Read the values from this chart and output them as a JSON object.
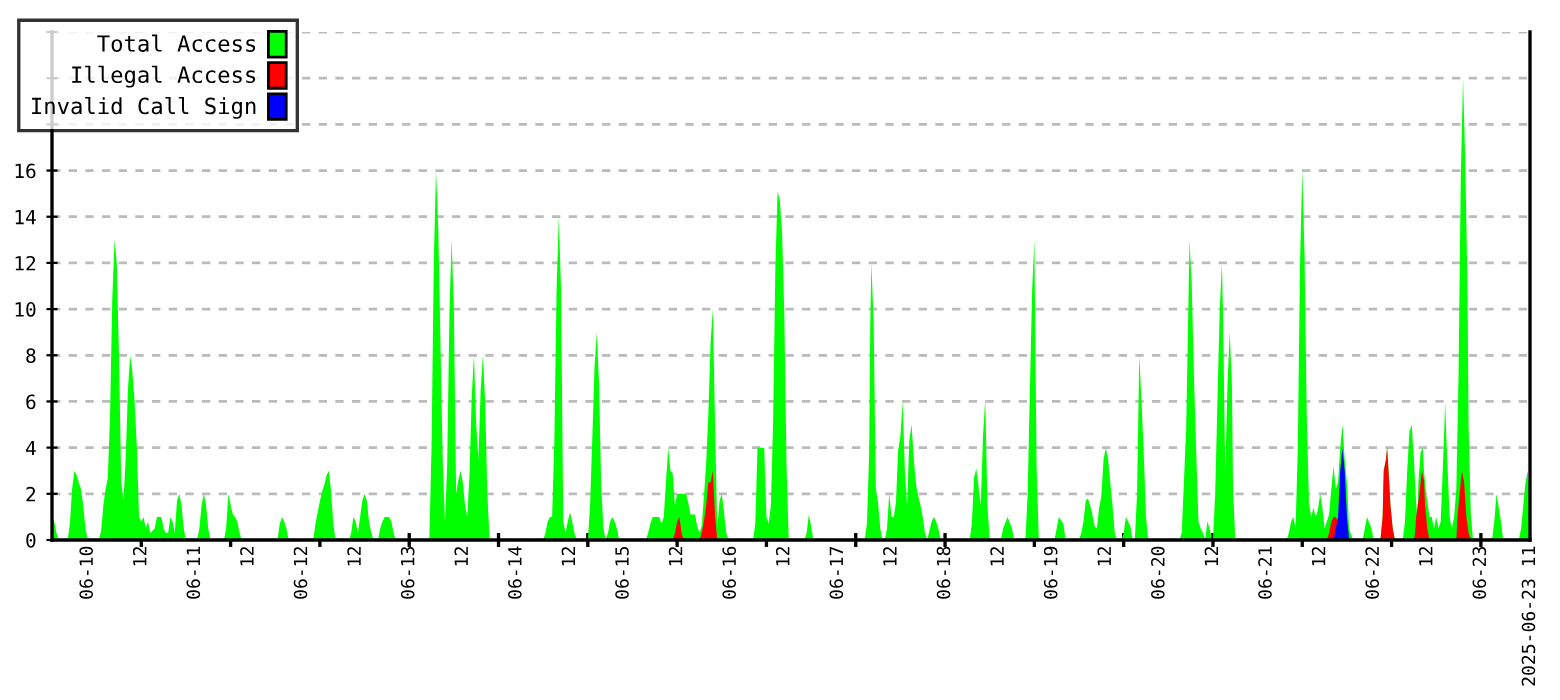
{
  "chart_data": {
    "type": "area",
    "legend": "top left",
    "grid": "y",
    "xlim": [
      "2025-06-09T16:00",
      "2025-06-23T11:00"
    ],
    "ylim": [
      0,
      22
    ],
    "yticks": [
      0,
      2,
      4,
      6,
      8,
      10,
      12,
      14,
      16,
      {
        "value": 18,
        "label": null
      },
      {
        "value": 20,
        "label": null
      },
      {
        "value": 22,
        "label": null
      }
    ],
    "xticks": [
      {
        "value": "2025-06-10T00:00",
        "label": "06-10"
      },
      {
        "value": "2025-06-10T12:00",
        "label": "12"
      },
      {
        "value": "2025-06-11T00:00",
        "label": "06-11"
      },
      {
        "value": "2025-06-11T12:00",
        "label": "12"
      },
      {
        "value": "2025-06-12T00:00",
        "label": "06-12"
      },
      {
        "value": "2025-06-12T12:00",
        "label": "12"
      },
      {
        "value": "2025-06-13T00:00",
        "label": "06-13"
      },
      {
        "value": "2025-06-13T12:00",
        "label": "12"
      },
      {
        "value": "2025-06-14T00:00",
        "label": "06-14"
      },
      {
        "value": "2025-06-14T12:00",
        "label": "12"
      },
      {
        "value": "2025-06-15T00:00",
        "label": "06-15"
      },
      {
        "value": "2025-06-15T12:00",
        "label": "12"
      },
      {
        "value": "2025-06-16T00:00",
        "label": "06-16"
      },
      {
        "value": "2025-06-16T12:00",
        "label": "12"
      },
      {
        "value": "2025-06-17T00:00",
        "label": "06-17"
      },
      {
        "value": "2025-06-17T12:00",
        "label": "12"
      },
      {
        "value": "2025-06-18T00:00",
        "label": "06-18"
      },
      {
        "value": "2025-06-18T12:00",
        "label": "12"
      },
      {
        "value": "2025-06-19T00:00",
        "label": "06-19"
      },
      {
        "value": "2025-06-19T12:00",
        "label": "12"
      },
      {
        "value": "2025-06-20T00:00",
        "label": "06-20"
      },
      {
        "value": "2025-06-20T12:00",
        "label": "12"
      },
      {
        "value": "2025-06-21T00:00",
        "label": "06-21"
      },
      {
        "value": "2025-06-21T12:00",
        "label": "12"
      },
      {
        "value": "2025-06-22T00:00",
        "label": "06-22"
      },
      {
        "value": "2025-06-22T12:00",
        "label": "12"
      },
      {
        "value": "2025-06-23T00:00",
        "label": "06-23"
      },
      {
        "value": "2025-06-23T11:00",
        "label": "2025-06-23 11"
      },
      {
        "value": "2025-06-10T12:00",
        "label": null
      },
      {
        "value": "2025-06-11T08:00",
        "label": null
      },
      {
        "value": "2025-06-12T04:00",
        "label": null
      },
      {
        "value": "2025-06-13T00:00",
        "label": null
      },
      {
        "value": "2025-06-13T20:00",
        "label": null
      },
      {
        "value": "2025-06-14T16:00",
        "label": null
      },
      {
        "value": "2025-06-15T12:00",
        "label": null
      },
      {
        "value": "2025-06-16T08:00",
        "label": null
      },
      {
        "value": "2025-06-17T04:00",
        "label": null
      },
      {
        "value": "2025-06-18T00:00",
        "label": null
      },
      {
        "value": "2025-06-18T20:00",
        "label": null
      },
      {
        "value": "2025-06-19T16:00",
        "label": null
      },
      {
        "value": "2025-06-20T12:00",
        "label": null
      },
      {
        "value": "2025-06-21T08:00",
        "label": null
      },
      {
        "value": "2025-06-22T04:00",
        "label": null
      },
      {
        "value": "2025-06-23T00:00",
        "label": null
      }
    ],
    "series": [
      {
        "name": "Total Access",
        "color": "#00ff00",
        "x": [
          "2025-06-09T16:00",
          "2025-06-09T16:30",
          "2025-06-09T17:00",
          "2025-06-09T17:30",
          "2025-06-09T19:30",
          "2025-06-09T20:00",
          "2025-06-09T20:30",
          "2025-06-09T21:00",
          "2025-06-09T21:30",
          "2025-06-09T22:00",
          "2025-06-09T22:30",
          "2025-06-09T23:00",
          "2025-06-09T23:30",
          "2025-06-10T00:00",
          "2025-06-10T02:30",
          "2025-06-10T03:00",
          "2025-06-10T03:30",
          "2025-06-10T04:00",
          "2025-06-10T04:30",
          "2025-06-10T05:00",
          "2025-06-10T05:30",
          "2025-06-10T06:00",
          "2025-06-10T06:30",
          "2025-06-10T07:00",
          "2025-06-10T07:30",
          "2025-06-10T08:00",
          "2025-06-10T08:30",
          "2025-06-10T09:00",
          "2025-06-10T09:30",
          "2025-06-10T10:00",
          "2025-06-10T10:30",
          "2025-06-10T11:00",
          "2025-06-10T11:30",
          "2025-06-10T12:00",
          "2025-06-10T12:30",
          "2025-06-10T13:00",
          "2025-06-10T13:30",
          "2025-06-10T14:00",
          "2025-06-10T15:00",
          "2025-06-10T15:30",
          "2025-06-10T16:00",
          "2025-06-10T16:30",
          "2025-06-10T17:00",
          "2025-06-10T17:30",
          "2025-06-10T18:00",
          "2025-06-10T18:30",
          "2025-06-10T19:00",
          "2025-06-10T19:30",
          "2025-06-10T20:00",
          "2025-06-10T20:30",
          "2025-06-10T21:00",
          "2025-06-10T21:30",
          "2025-06-10T22:00",
          "2025-06-11T00:30",
          "2025-06-11T01:00",
          "2025-06-11T01:30",
          "2025-06-11T02:00",
          "2025-06-11T02:30",
          "2025-06-11T03:00",
          "2025-06-11T03:30",
          "2025-06-11T06:30",
          "2025-06-11T07:00",
          "2025-06-11T07:30",
          "2025-06-11T08:00",
          "2025-06-11T08:30",
          "2025-06-11T09:00",
          "2025-06-11T09:30",
          "2025-06-11T10:00",
          "2025-06-11T10:30",
          "2025-06-11T18:30",
          "2025-06-11T19:00",
          "2025-06-11T19:30",
          "2025-06-11T20:00",
          "2025-06-11T20:30",
          "2025-06-11T21:00",
          "2025-06-12T02:30",
          "2025-06-12T03:00",
          "2025-06-12T03:30",
          "2025-06-12T04:00",
          "2025-06-12T04:30",
          "2025-06-12T05:00",
          "2025-06-12T05:30",
          "2025-06-12T06:00",
          "2025-06-12T06:30",
          "2025-06-12T07:00",
          "2025-06-12T07:30",
          "2025-06-12T10:30",
          "2025-06-12T11:00",
          "2025-06-12T11:30",
          "2025-06-12T12:00",
          "2025-06-12T12:30",
          "2025-06-12T13:00",
          "2025-06-12T13:30",
          "2025-06-12T14:00",
          "2025-06-12T14:30",
          "2025-06-12T15:00",
          "2025-06-12T15:30",
          "2025-06-12T16:00",
          "2025-06-12T17:00",
          "2025-06-12T17:30",
          "2025-06-12T18:00",
          "2025-06-12T18:30",
          "2025-06-12T19:00",
          "2025-06-12T19:30",
          "2025-06-12T20:00",
          "2025-06-12T20:30",
          "2025-06-12T21:00",
          "2025-06-13T04:30",
          "2025-06-13T05:00",
          "2025-06-13T05:30",
          "2025-06-13T06:00",
          "2025-06-13T06:30",
          "2025-06-13T07:00",
          "2025-06-13T07:30",
          "2025-06-13T08:00",
          "2025-06-13T08:30",
          "2025-06-13T09:00",
          "2025-06-13T09:30",
          "2025-06-13T10:00",
          "2025-06-13T10:30",
          "2025-06-13T11:00",
          "2025-06-13T11:30",
          "2025-06-13T12:00",
          "2025-06-13T12:30",
          "2025-06-13T13:00",
          "2025-06-13T13:30",
          "2025-06-13T14:00",
          "2025-06-13T14:30",
          "2025-06-13T15:00",
          "2025-06-13T15:30",
          "2025-06-13T16:00",
          "2025-06-13T16:30",
          "2025-06-13T17:00",
          "2025-06-13T17:30",
          "2025-06-13T18:00",
          "2025-06-14T06:00",
          "2025-06-14T06:30",
          "2025-06-14T07:00",
          "2025-06-14T07:30",
          "2025-06-14T08:00",
          "2025-06-14T08:30",
          "2025-06-14T09:00",
          "2025-06-14T09:30",
          "2025-06-14T10:00",
          "2025-06-14T10:30",
          "2025-06-14T11:00",
          "2025-06-14T11:30",
          "2025-06-14T12:00",
          "2025-06-14T12:30",
          "2025-06-14T13:00",
          "2025-06-14T13:30",
          "2025-06-14T16:00",
          "2025-06-14T16:30",
          "2025-06-14T17:00",
          "2025-06-14T17:30",
          "2025-06-14T18:00",
          "2025-06-14T18:30",
          "2025-06-14T19:00",
          "2025-06-14T19:30",
          "2025-06-14T20:00",
          "2025-06-14T20:30",
          "2025-06-14T21:00",
          "2025-06-14T21:30",
          "2025-06-14T22:00",
          "2025-06-14T22:30",
          "2025-06-14T23:00",
          "2025-06-15T05:00",
          "2025-06-15T05:30",
          "2025-06-15T06:00",
          "2025-06-15T06:30",
          "2025-06-15T07:00",
          "2025-06-15T07:30",
          "2025-06-15T08:00",
          "2025-06-15T08:30",
          "2025-06-15T09:00",
          "2025-06-15T09:30",
          "2025-06-15T10:00",
          "2025-06-15T10:30",
          "2025-06-15T11:00",
          "2025-06-15T11:30",
          "2025-06-15T12:00",
          "2025-06-15T12:30",
          "2025-06-15T13:00",
          "2025-06-15T13:30",
          "2025-06-15T14:00",
          "2025-06-15T14:30",
          "2025-06-15T15:00",
          "2025-06-15T15:30",
          "2025-06-15T16:00",
          "2025-06-15T16:30",
          "2025-06-15T17:00",
          "2025-06-15T17:30",
          "2025-06-15T18:00",
          "2025-06-15T18:30",
          "2025-06-15T19:00",
          "2025-06-15T19:30",
          "2025-06-15T20:00",
          "2025-06-15T20:30",
          "2025-06-15T21:00",
          "2025-06-15T21:30",
          "2025-06-15T22:00",
          "2025-06-15T22:30",
          "2025-06-15T23:00",
          "2025-06-15T23:30",
          "2025-06-16T05:00",
          "2025-06-16T05:30",
          "2025-06-16T06:00",
          "2025-06-16T06:30",
          "2025-06-16T07:00",
          "2025-06-16T07:30",
          "2025-06-16T08:00",
          "2025-06-16T08:30",
          "2025-06-16T09:00",
          "2025-06-16T09:30",
          "2025-06-16T10:00",
          "2025-06-16T10:30",
          "2025-06-16T11:00",
          "2025-06-16T11:30",
          "2025-06-16T12:00",
          "2025-06-16T12:30",
          "2025-06-16T13:00",
          "2025-06-16T16:30",
          "2025-06-16T17:00",
          "2025-06-16T17:30",
          "2025-06-16T18:00",
          "2025-06-16T18:30",
          "2025-06-17T06:00",
          "2025-06-17T06:30",
          "2025-06-17T07:00",
          "2025-06-17T07:15",
          "2025-06-17T07:30",
          "2025-06-17T08:00",
          "2025-06-17T08:30",
          "2025-06-17T09:00",
          "2025-06-17T09:30",
          "2025-06-17T10:00",
          "2025-06-17T10:30",
          "2025-06-17T11:00",
          "2025-06-17T11:30",
          "2025-06-17T12:00",
          "2025-06-17T12:30",
          "2025-06-17T13:00",
          "2025-06-17T13:30",
          "2025-06-17T14:00",
          "2025-06-17T14:30",
          "2025-06-17T15:00",
          "2025-06-17T15:30",
          "2025-06-17T16:00",
          "2025-06-17T16:30",
          "2025-06-17T17:00",
          "2025-06-17T17:30",
          "2025-06-17T18:00",
          "2025-06-17T18:30",
          "2025-06-17T19:00",
          "2025-06-17T19:30",
          "2025-06-17T20:00",
          "2025-06-17T20:30",
          "2025-06-17T21:00",
          "2025-06-17T21:30",
          "2025-06-17T22:00",
          "2025-06-17T22:30",
          "2025-06-17T23:00",
          "2025-06-18T05:30",
          "2025-06-18T06:00",
          "2025-06-18T06:30",
          "2025-06-18T07:00",
          "2025-06-18T07:30",
          "2025-06-18T08:00",
          "2025-06-18T08:30",
          "2025-06-18T09:00",
          "2025-06-18T09:30",
          "2025-06-18T10:00",
          "2025-06-18T12:30",
          "2025-06-18T13:00",
          "2025-06-18T14:00",
          "2025-06-18T15:00",
          "2025-06-18T15:30",
          "2025-06-18T18:00",
          "2025-06-18T18:30",
          "2025-06-18T19:00",
          "2025-06-18T19:30",
          "2025-06-18T20:00",
          "2025-06-18T20:30",
          "2025-06-18T21:00",
          "2025-06-19T00:30",
          "2025-06-19T01:00",
          "2025-06-19T01:30",
          "2025-06-19T02:30",
          "2025-06-19T03:00",
          "2025-06-19T06:00",
          "2025-06-19T06:30",
          "2025-06-19T07:00",
          "2025-06-19T07:30",
          "2025-06-19T08:00",
          "2025-06-19T08:30",
          "2025-06-19T09:00",
          "2025-06-19T09:30",
          "2025-06-19T10:00",
          "2025-06-19T10:30",
          "2025-06-19T11:00",
          "2025-06-19T11:30",
          "2025-06-19T12:00",
          "2025-06-19T12:30",
          "2025-06-19T13:00",
          "2025-06-19T13:30",
          "2025-06-19T14:00",
          "2025-06-19T14:30",
          "2025-06-19T15:30",
          "2025-06-19T16:00",
          "2025-06-19T16:30",
          "2025-06-19T17:30",
          "2025-06-19T18:00",
          "2025-06-19T18:30",
          "2025-06-19T19:00",
          "2025-06-19T19:30",
          "2025-06-19T20:00",
          "2025-06-19T20:30",
          "2025-06-19T21:00",
          "2025-06-19T21:30",
          "2025-06-20T04:30",
          "2025-06-20T05:00",
          "2025-06-20T06:00",
          "2025-06-20T06:30",
          "2025-06-20T06:45",
          "2025-06-20T07:15",
          "2025-06-20T07:45",
          "2025-06-20T08:15",
          "2025-06-20T08:45",
          "2025-06-20T09:15",
          "2025-06-20T09:45",
          "2025-06-20T10:15",
          "2025-06-20T10:45",
          "2025-06-20T11:15",
          "2025-06-20T11:45",
          "2025-06-20T12:00",
          "2025-06-20T12:30",
          "2025-06-20T13:00",
          "2025-06-20T13:30",
          "2025-06-20T14:00",
          "2025-06-20T14:15",
          "2025-06-20T14:45",
          "2025-06-20T15:15",
          "2025-06-20T15:45",
          "2025-06-20T16:15",
          "2025-06-20T16:30",
          "2025-06-20T17:00",
          "2025-06-21T04:30",
          "2025-06-21T05:00",
          "2025-06-21T05:30",
          "2025-06-21T06:00",
          "2025-06-21T06:30",
          "2025-06-21T07:00",
          "2025-06-21T07:30",
          "2025-06-21T08:00",
          "2025-06-21T08:30",
          "2025-06-21T09:00",
          "2025-06-21T09:30",
          "2025-06-21T10:00",
          "2025-06-21T10:30",
          "2025-06-21T11:00",
          "2025-06-21T11:30",
          "2025-06-21T12:00",
          "2025-06-21T12:30",
          "2025-06-21T13:00",
          "2025-06-21T14:00",
          "2025-06-21T14:30",
          "2025-06-21T15:00",
          "2025-06-21T15:30",
          "2025-06-21T16:00",
          "2025-06-21T16:30",
          "2025-06-21T17:00",
          "2025-06-21T17:30",
          "2025-06-21T18:00",
          "2025-06-21T18:30",
          "2025-06-21T19:00",
          "2025-06-21T19:30",
          "2025-06-21T21:30",
          "2025-06-21T22:00",
          "2025-06-21T22:30",
          "2025-06-21T23:30",
          "2025-06-22T00:00",
          "2025-06-22T01:30",
          "2025-06-22T02:00",
          "2025-06-22T02:15",
          "2025-06-22T02:45",
          "2025-06-22T03:00",
          "2025-06-22T03:15",
          "2025-06-22T03:45",
          "2025-06-22T04:15",
          "2025-06-22T04:45",
          "2025-06-22T06:30",
          "2025-06-22T07:00",
          "2025-06-22T07:30",
          "2025-06-22T08:00",
          "2025-06-22T08:30",
          "2025-06-22T09:00",
          "2025-06-22T09:30",
          "2025-06-22T09:45",
          "2025-06-22T10:00",
          "2025-06-22T10:30",
          "2025-06-22T11:00",
          "2025-06-22T11:15",
          "2025-06-22T11:45",
          "2025-06-22T12:30",
          "2025-06-22T13:00",
          "2025-06-22T13:30",
          "2025-06-22T14:00",
          "2025-06-22T14:30",
          "2025-06-22T15:00",
          "2025-06-22T15:15",
          "2025-06-22T15:45",
          "2025-06-22T16:00",
          "2025-06-22T16:15",
          "2025-06-22T17:00",
          "2025-06-22T17:30",
          "2025-06-22T18:00",
          "2025-06-22T18:30",
          "2025-06-22T19:00",
          "2025-06-22T19:30",
          "2025-06-22T20:00",
          "2025-06-22T20:30",
          "2025-06-22T21:00",
          "2025-06-22T21:15",
          "2025-06-22T21:45",
          "2025-06-22T22:15",
          "2025-06-23T02:30",
          "2025-06-23T03:00",
          "2025-06-23T03:30",
          "2025-06-23T04:30",
          "2025-06-23T05:00",
          "2025-06-23T08:30",
          "2025-06-23T09:00",
          "2025-06-23T09:30",
          "2025-06-23T10:00",
          "2025-06-23T10:30",
          "2025-06-23T11:00"
        ],
        "values": [
          1,
          0.8,
          0.3,
          0,
          0,
          0.7,
          2.2,
          3,
          2.8,
          2.5,
          2.2,
          1.5,
          0.5,
          0,
          0,
          0.4,
          1.5,
          2.2,
          2.7,
          5.4,
          10.4,
          13,
          12,
          8,
          2.5,
          1.7,
          3.5,
          6.5,
          8,
          7.3,
          6,
          4,
          1,
          0.8,
          1,
          0.5,
          0.8,
          0.3,
          0.5,
          1,
          1,
          1,
          0.5,
          0.3,
          0.3,
          1,
          0.8,
          0.3,
          1.7,
          2,
          1.5,
          0.5,
          0,
          0,
          0.5,
          1.5,
          2,
          1.5,
          0.5,
          0,
          0,
          0.5,
          2,
          1.5,
          1.1,
          1,
          0.8,
          0.3,
          0,
          0,
          0.7,
          1,
          0.8,
          0.5,
          0,
          0,
          0.7,
          1.2,
          1.7,
          2.1,
          2.4,
          2.8,
          3,
          2.1,
          0.7,
          0,
          0,
          0.3,
          1,
          0.8,
          0.3,
          1,
          1.7,
          2,
          1.7,
          0.8,
          0.3,
          0,
          0,
          0.5,
          0.8,
          1,
          1,
          1,
          0.8,
          0.3,
          0,
          0,
          4,
          12,
          16,
          13.5,
          8.5,
          3.5,
          0.8,
          3.2,
          9.8,
          13,
          10,
          2,
          2.6,
          3,
          2.5,
          1.5,
          1,
          2.8,
          6.2,
          8,
          5,
          3.5,
          6.5,
          8,
          6,
          2,
          0,
          0,
          0.3,
          0.8,
          1,
          1,
          4.3,
          10.8,
          14,
          10.8,
          0.8,
          0.3,
          0.8,
          1.2,
          0.8,
          0.3,
          0,
          0,
          1.5,
          4.4,
          7.5,
          9,
          6.8,
          2.3,
          0.5,
          0,
          0.3,
          0.8,
          1,
          0.8,
          0.5,
          0,
          0,
          0.3,
          0.7,
          1,
          1,
          1,
          1,
          0.7,
          1,
          2.5,
          4,
          3,
          2.9,
          1.5,
          2,
          2,
          2,
          2,
          2,
          1.6,
          1.1,
          1.1,
          1.1,
          0.6,
          0.3,
          0.6,
          1.9,
          3.3,
          5.5,
          8.6,
          10,
          4.8,
          0.5,
          1.7,
          2,
          1.2,
          0.3,
          0,
          0,
          0.7,
          4,
          4,
          4,
          4,
          1,
          0.7,
          1.5,
          5.2,
          11.8,
          15.1,
          14.7,
          13.3,
          9.8,
          3.2,
          0,
          0,
          0.3,
          1.1,
          0.6,
          0,
          0,
          0.7,
          3.7,
          9.3,
          12,
          9.5,
          2.2,
          1.6,
          0.5,
          0,
          0,
          0.5,
          2,
          1,
          1,
          1.6,
          3.9,
          4.5,
          6,
          3,
          1.5,
          4.3,
          5,
          3.5,
          2.4,
          1.9,
          1.5,
          1,
          0.3,
          0,
          0.4,
          0.8,
          1,
          0.8,
          0.5,
          0,
          0,
          0.7,
          2.7,
          3.1,
          2.3,
          1.5,
          4.5,
          6.1,
          1.5,
          0,
          0,
          0.5,
          1,
          0.5,
          0,
          0,
          2,
          6.5,
          10.8,
          13,
          3.2,
          0,
          0,
          0.5,
          1,
          0.7,
          0,
          0,
          0.3,
          0.8,
          1.7,
          1.8,
          1.5,
          1.1,
          0.6,
          0.5,
          1.4,
          1.9,
          3.5,
          4,
          3.5,
          2.5,
          1.5,
          0.3,
          0,
          0,
          0.3,
          1,
          0.6,
          0,
          0,
          2,
          8,
          6,
          3.7,
          1,
          0,
          0,
          0.3,
          4.8,
          10.2,
          13,
          11,
          7,
          3.8,
          0.8,
          0.5,
          0.3,
          0,
          0.8,
          0.5,
          0,
          0,
          2,
          6,
          9.9,
          12,
          9.7,
          2.9,
          6.7,
          9,
          6.7,
          2.2,
          0,
          0,
          0.3,
          0.8,
          1,
          0.5,
          4,
          12,
          16,
          12.4,
          5.4,
          1.6,
          1,
          1.4,
          1,
          1.3,
          2,
          1.4,
          0.5,
          1.1,
          2.2,
          3.2,
          2.2,
          2.5,
          4,
          5,
          3.5,
          2.5,
          0.5,
          0.2,
          0,
          0,
          0.5,
          1,
          0.5,
          0,
          0,
          1,
          3,
          3.5,
          4,
          3.2,
          1.5,
          0.5,
          0,
          0,
          0.8,
          3,
          4.7,
          5,
          3.5,
          1.6,
          1,
          2.5,
          3.8,
          4,
          3,
          2,
          1,
          1,
          0.5,
          1,
          0.5,
          0.8,
          2,
          4.5,
          6,
          4.5,
          1,
          0.5,
          1,
          2.2,
          7.2,
          15.7,
          20,
          16.4,
          11,
          4.9,
          1.1,
          0,
          0,
          0.8,
          2,
          0.8,
          0,
          0,
          0.5,
          1.5,
          2.5,
          3,
          1.5
        ]
      },
      {
        "name": "Illegal Access",
        "color": "#ff0000",
        "x": [
          "2025-06-15T11:00",
          "2025-06-15T11:30",
          "2025-06-15T12:00",
          "2025-06-15T12:30",
          "2025-06-15T13:00",
          "2025-06-15T13:30",
          "2025-06-15T17:00",
          "2025-06-15T17:30",
          "2025-06-15T18:00",
          "2025-06-15T18:30",
          "2025-06-15T19:00",
          "2025-06-15T19:30",
          "2025-06-15T20:00",
          "2025-06-15T20:30",
          "2025-06-15T21:00",
          "2025-06-21T13:30",
          "2025-06-21T14:00",
          "2025-06-21T14:30",
          "2025-06-21T15:00",
          "2025-06-21T15:30",
          "2025-06-21T16:00",
          "2025-06-21T16:30",
          "2025-06-21T17:00",
          "2025-06-21T17:30",
          "2025-06-21T18:00",
          "2025-06-21T18:30",
          "2025-06-22T01:30",
          "2025-06-22T02:00",
          "2025-06-22T02:15",
          "2025-06-22T02:45",
          "2025-06-22T03:00",
          "2025-06-22T03:15",
          "2025-06-22T03:45",
          "2025-06-22T04:15",
          "2025-06-22T04:45",
          "2025-06-22T09:00",
          "2025-06-22T09:15",
          "2025-06-22T09:30",
          "2025-06-22T10:15",
          "2025-06-22T10:45",
          "2025-06-22T11:15",
          "2025-06-22T11:30",
          "2025-06-22T12:00",
          "2025-06-22T12:30",
          "2025-06-22T18:30",
          "2025-06-22T18:45",
          "2025-06-22T19:15",
          "2025-06-22T19:45",
          "2025-06-22T20:15",
          "2025-06-22T20:45",
          "2025-06-22T21:15",
          "2025-06-22T21:45"
        ],
        "values": [
          0,
          0.3,
          0.8,
          1,
          0.3,
          0,
          0,
          0.3,
          0.8,
          1.5,
          2.5,
          2.5,
          3,
          1,
          0,
          0,
          0.3,
          0.8,
          1,
          1,
          0.8,
          1,
          null,
          0.8,
          0.3,
          0,
          0,
          1,
          3,
          3.5,
          4,
          3.2,
          1.5,
          0.5,
          0,
          0,
          0.3,
          1,
          2,
          3,
          2.6,
          1.5,
          0.5,
          0,
          0,
          1,
          2,
          3,
          2.5,
          1,
          0.3,
          0
        ]
      },
      {
        "name": "Invalid Call Sign",
        "color": "#0000ff",
        "x": [
          "2025-06-21T15:00",
          "2025-06-21T15:30",
          "2025-06-21T16:00",
          "2025-06-21T16:30",
          "2025-06-21T17:00",
          "2025-06-21T17:30",
          "2025-06-21T18:00",
          "2025-06-21T18:30"
        ],
        "values": [
          0,
          0.5,
          1,
          3,
          4,
          3,
          1,
          0
        ]
      }
    ]
  }
}
